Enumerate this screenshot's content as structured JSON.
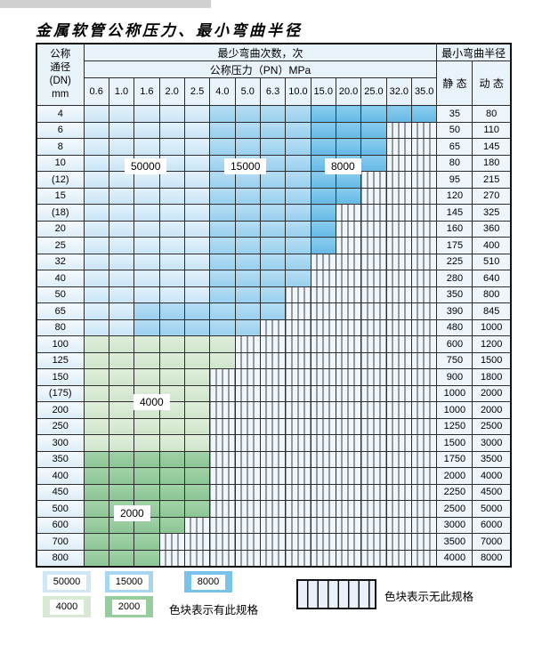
{
  "title": "金属软管公称压力、最小弯曲半径",
  "chart_data": {
    "type": "table",
    "header": {
      "dn_label_lines": [
        "公称",
        "通径",
        "(DN)",
        "mm"
      ],
      "bend_cycles_label": "最少弯曲次数，次",
      "pressure_label": "公称压力（PN）MPa",
      "radius_label": "最小弯曲半径",
      "static_label": "静 态",
      "dynamic_label": "动 态",
      "pressures": [
        "0.6",
        "1.0",
        "1.6",
        "2.0",
        "2.5",
        "4.0",
        "5.0",
        "6.3",
        "10.0",
        "15.0",
        "20.0",
        "25.0",
        "32.0",
        "35.0"
      ]
    },
    "cycle_levels": {
      "A": "50000",
      "B": "15000",
      "C": "8000",
      "D": "4000",
      "E": "2000",
      "S": "no-spec-striped"
    },
    "colors": {
      "level_50000": "#cfe7f7",
      "level_15000": "#a6d6f1",
      "level_8000": "#79c3ea",
      "level_4000": "#d8ead4",
      "level_2000": "#97cc9e",
      "striped_bg": "#eff6fc",
      "header_bg": "#e9f3fa",
      "border": "#2d2d2d"
    },
    "rows": [
      {
        "dn": "4",
        "static": "35",
        "dynamic": "80",
        "spans": [
          [
            "A",
            5
          ],
          [
            "B",
            4
          ],
          [
            "C",
            5
          ]
        ]
      },
      {
        "dn": "6",
        "static": "50",
        "dynamic": "110",
        "spans": [
          [
            "A",
            5
          ],
          [
            "B",
            4
          ],
          [
            "C",
            3
          ],
          [
            "S",
            2
          ]
        ]
      },
      {
        "dn": "8",
        "static": "65",
        "dynamic": "145",
        "spans": [
          [
            "A",
            5
          ],
          [
            "B",
            4
          ],
          [
            "C",
            3
          ],
          [
            "S",
            2
          ]
        ]
      },
      {
        "dn": "10",
        "static": "80",
        "dynamic": "180",
        "spans": [
          [
            "A",
            5
          ],
          [
            "B",
            4
          ],
          [
            "C",
            3
          ],
          [
            "S",
            2
          ]
        ]
      },
      {
        "dn": "(12)",
        "static": "95",
        "dynamic": "215",
        "spans": [
          [
            "A",
            5
          ],
          [
            "B",
            4
          ],
          [
            "C",
            2
          ],
          [
            "S",
            3
          ]
        ]
      },
      {
        "dn": "15",
        "static": "120",
        "dynamic": "270",
        "spans": [
          [
            "A",
            5
          ],
          [
            "B",
            4
          ],
          [
            "C",
            2
          ],
          [
            "S",
            3
          ]
        ]
      },
      {
        "dn": "(18)",
        "static": "145",
        "dynamic": "325",
        "spans": [
          [
            "A",
            5
          ],
          [
            "B",
            4
          ],
          [
            "C",
            1
          ],
          [
            "S",
            4
          ]
        ]
      },
      {
        "dn": "20",
        "static": "160",
        "dynamic": "360",
        "spans": [
          [
            "A",
            5
          ],
          [
            "B",
            4
          ],
          [
            "C",
            1
          ],
          [
            "S",
            4
          ]
        ]
      },
      {
        "dn": "25",
        "static": "175",
        "dynamic": "400",
        "spans": [
          [
            "A",
            5
          ],
          [
            "B",
            4
          ],
          [
            "C",
            1
          ],
          [
            "S",
            4
          ]
        ]
      },
      {
        "dn": "32",
        "static": "225",
        "dynamic": "510",
        "spans": [
          [
            "A",
            5
          ],
          [
            "B",
            4
          ],
          [
            "S",
            5
          ]
        ]
      },
      {
        "dn": "40",
        "static": "280",
        "dynamic": "640",
        "spans": [
          [
            "A",
            5
          ],
          [
            "B",
            4
          ],
          [
            "S",
            5
          ]
        ]
      },
      {
        "dn": "50",
        "static": "350",
        "dynamic": "800",
        "spans": [
          [
            "A",
            5
          ],
          [
            "B",
            3
          ],
          [
            "S",
            6
          ]
        ]
      },
      {
        "dn": "65",
        "static": "390",
        "dynamic": "845",
        "spans": [
          [
            "A",
            2
          ],
          [
            "B",
            6
          ],
          [
            "S",
            6
          ]
        ]
      },
      {
        "dn": "80",
        "static": "480",
        "dynamic": "1000",
        "spans": [
          [
            "A",
            2
          ],
          [
            "B",
            5
          ],
          [
            "S",
            7
          ]
        ]
      },
      {
        "dn": "100",
        "static": "600",
        "dynamic": "1200",
        "spans": [
          [
            "D",
            6
          ],
          [
            "S",
            8
          ]
        ]
      },
      {
        "dn": "125",
        "static": "750",
        "dynamic": "1500",
        "spans": [
          [
            "D",
            6
          ],
          [
            "S",
            8
          ]
        ]
      },
      {
        "dn": "150",
        "static": "900",
        "dynamic": "1800",
        "spans": [
          [
            "D",
            5
          ],
          [
            "S",
            9
          ]
        ]
      },
      {
        "dn": "(175)",
        "static": "1000",
        "dynamic": "2000",
        "spans": [
          [
            "D",
            5
          ],
          [
            "S",
            9
          ]
        ]
      },
      {
        "dn": "200",
        "static": "1000",
        "dynamic": "2000",
        "spans": [
          [
            "D",
            5
          ],
          [
            "S",
            9
          ]
        ]
      },
      {
        "dn": "250",
        "static": "1250",
        "dynamic": "2500",
        "spans": [
          [
            "D",
            5
          ],
          [
            "S",
            9
          ]
        ]
      },
      {
        "dn": "300",
        "static": "1500",
        "dynamic": "3000",
        "spans": [
          [
            "D",
            5
          ],
          [
            "S",
            9
          ]
        ]
      },
      {
        "dn": "350",
        "static": "1750",
        "dynamic": "3500",
        "spans": [
          [
            "E",
            5
          ],
          [
            "S",
            9
          ]
        ]
      },
      {
        "dn": "400",
        "static": "2000",
        "dynamic": "4000",
        "spans": [
          [
            "E",
            5
          ],
          [
            "S",
            9
          ]
        ]
      },
      {
        "dn": "450",
        "static": "2250",
        "dynamic": "4500",
        "spans": [
          [
            "E",
            5
          ],
          [
            "S",
            9
          ]
        ]
      },
      {
        "dn": "500",
        "static": "2500",
        "dynamic": "5000",
        "spans": [
          [
            "E",
            5
          ],
          [
            "S",
            9
          ]
        ]
      },
      {
        "dn": "600",
        "static": "3000",
        "dynamic": "6000",
        "spans": [
          [
            "E",
            4
          ],
          [
            "S",
            10
          ]
        ]
      },
      {
        "dn": "700",
        "static": "3500",
        "dynamic": "7000",
        "spans": [
          [
            "E",
            3
          ],
          [
            "S",
            11
          ]
        ]
      },
      {
        "dn": "800",
        "static": "4000",
        "dynamic": "8000",
        "spans": [
          [
            "E",
            3
          ],
          [
            "S",
            11
          ]
        ]
      }
    ],
    "region_labels": [
      {
        "text": "50000"
      },
      {
        "text": "15000"
      },
      {
        "text": "8000"
      },
      {
        "text": "4000"
      },
      {
        "text": "2000"
      }
    ]
  },
  "legend": {
    "items": [
      {
        "label": "50000",
        "color": "#cfe7f7"
      },
      {
        "label": "15000",
        "color": "#a6d6f1"
      },
      {
        "label": "8000",
        "color": "#79c3ea"
      },
      {
        "label": "4000",
        "color": "#d8ead4"
      },
      {
        "label": "2000",
        "color": "#97cc9e"
      }
    ],
    "has_spec_note": "色块表示有此规格",
    "no_spec_note": "色块表示无此规格"
  }
}
